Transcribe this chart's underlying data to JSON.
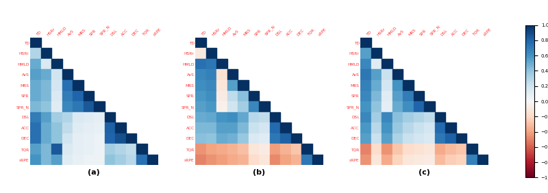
{
  "labels": [
    "TD",
    "HSRr",
    "HMLD",
    "AvS",
    "MRS",
    "SPR",
    "SPR_N",
    "DSL",
    "ACC",
    "DEC",
    "TQR",
    "sRPE"
  ],
  "subplot_labels": [
    "(a)",
    "(b)",
    "(c)"
  ],
  "label_color": "#FF3333",
  "cmap": "RdBu",
  "vmin": -1,
  "vmax": 1,
  "figsize": [
    8.0,
    2.82
  ],
  "dpi": 100,
  "corr_a": [
    [
      1.0,
      0.3,
      0.5,
      0.55,
      0.5,
      0.5,
      0.45,
      0.7,
      0.75,
      0.75,
      0.55,
      0.6
    ],
    [
      0.3,
      1.0,
      0.15,
      0.5,
      0.45,
      0.45,
      0.4,
      0.55,
      0.5,
      0.5,
      0.45,
      0.45
    ],
    [
      0.5,
      0.15,
      1.0,
      0.2,
      0.18,
      0.15,
      0.12,
      0.35,
      0.4,
      0.4,
      0.85,
      0.55
    ],
    [
      0.55,
      0.5,
      0.2,
      1.0,
      0.75,
      0.7,
      0.65,
      0.3,
      0.25,
      0.2,
      0.15,
      0.12
    ],
    [
      0.5,
      0.45,
      0.18,
      0.75,
      1.0,
      0.8,
      0.72,
      0.15,
      0.12,
      0.1,
      0.1,
      0.08
    ],
    [
      0.5,
      0.45,
      0.15,
      0.7,
      0.8,
      1.0,
      0.85,
      0.12,
      0.1,
      0.08,
      0.08,
      0.06
    ],
    [
      0.45,
      0.4,
      0.12,
      0.65,
      0.72,
      0.85,
      1.0,
      0.1,
      0.08,
      0.06,
      0.06,
      0.05
    ],
    [
      0.7,
      0.55,
      0.35,
      0.3,
      0.15,
      0.12,
      0.1,
      1.0,
      0.82,
      0.8,
      0.35,
      0.4
    ],
    [
      0.75,
      0.5,
      0.4,
      0.25,
      0.12,
      0.1,
      0.08,
      0.82,
      1.0,
      0.88,
      0.3,
      0.35
    ],
    [
      0.75,
      0.5,
      0.4,
      0.2,
      0.1,
      0.08,
      0.06,
      0.8,
      0.88,
      1.0,
      0.25,
      0.28
    ],
    [
      0.55,
      0.45,
      0.85,
      0.15,
      0.1,
      0.08,
      0.06,
      0.35,
      0.3,
      0.25,
      1.0,
      0.75
    ],
    [
      0.6,
      0.45,
      0.55,
      0.12,
      0.08,
      0.06,
      0.05,
      0.4,
      0.35,
      0.28,
      0.75,
      1.0
    ]
  ],
  "corr_b": [
    [
      1.0,
      -0.1,
      0.75,
      0.65,
      0.62,
      0.58,
      0.55,
      0.5,
      0.45,
      0.42,
      -0.45,
      -0.5
    ],
    [
      -0.1,
      1.0,
      0.72,
      0.68,
      0.65,
      0.62,
      0.58,
      0.52,
      0.45,
      0.4,
      -0.4,
      -0.45
    ],
    [
      0.75,
      0.72,
      1.0,
      -0.15,
      -0.12,
      -0.08,
      -0.05,
      0.6,
      0.55,
      0.5,
      -0.38,
      -0.42
    ],
    [
      0.65,
      0.68,
      -0.15,
      1.0,
      0.55,
      0.25,
      0.2,
      0.62,
      0.55,
      0.48,
      -0.35,
      -0.38
    ],
    [
      0.62,
      0.65,
      -0.12,
      0.55,
      1.0,
      0.42,
      0.35,
      0.52,
      0.45,
      0.38,
      -0.3,
      -0.35
    ],
    [
      0.58,
      0.62,
      -0.08,
      0.25,
      0.42,
      1.0,
      0.65,
      0.28,
      0.22,
      0.15,
      -0.12,
      -0.18
    ],
    [
      0.55,
      0.58,
      -0.05,
      0.2,
      0.35,
      0.65,
      1.0,
      0.25,
      0.18,
      0.12,
      -0.08,
      -0.12
    ],
    [
      0.5,
      0.52,
      0.6,
      0.62,
      0.52,
      0.28,
      0.25,
      1.0,
      0.78,
      0.72,
      -0.42,
      -0.48
    ],
    [
      0.45,
      0.45,
      0.55,
      0.55,
      0.45,
      0.22,
      0.18,
      0.78,
      1.0,
      0.82,
      -0.35,
      -0.4
    ],
    [
      0.42,
      0.4,
      0.5,
      0.48,
      0.38,
      0.15,
      0.12,
      0.72,
      0.82,
      1.0,
      -0.28,
      -0.35
    ],
    [
      -0.45,
      -0.4,
      -0.38,
      -0.35,
      -0.3,
      -0.12,
      -0.08,
      -0.42,
      -0.35,
      -0.28,
      1.0,
      0.72
    ],
    [
      -0.5,
      -0.45,
      -0.42,
      -0.38,
      -0.35,
      -0.18,
      -0.12,
      -0.48,
      -0.4,
      -0.35,
      0.72,
      1.0
    ]
  ],
  "corr_c": [
    [
      1.0,
      0.55,
      0.65,
      0.72,
      0.68,
      0.65,
      0.6,
      0.65,
      0.58,
      0.55,
      -0.5,
      -0.45
    ],
    [
      0.55,
      1.0,
      0.12,
      0.55,
      0.5,
      0.45,
      0.4,
      0.35,
      0.28,
      0.22,
      -0.18,
      -0.12
    ],
    [
      0.65,
      0.12,
      1.0,
      0.22,
      0.18,
      0.12,
      0.1,
      0.65,
      0.6,
      0.55,
      -0.45,
      -0.38
    ],
    [
      0.72,
      0.55,
      0.22,
      1.0,
      0.6,
      0.55,
      0.5,
      0.42,
      0.38,
      0.32,
      -0.28,
      -0.22
    ],
    [
      0.68,
      0.5,
      0.18,
      0.6,
      1.0,
      0.7,
      0.62,
      0.35,
      0.28,
      0.22,
      -0.18,
      -0.12
    ],
    [
      0.65,
      0.45,
      0.12,
      0.55,
      0.7,
      1.0,
      0.8,
      0.3,
      0.22,
      0.18,
      -0.15,
      -0.1
    ],
    [
      0.6,
      0.4,
      0.1,
      0.5,
      0.62,
      0.8,
      1.0,
      0.25,
      0.18,
      0.15,
      -0.12,
      -0.08
    ],
    [
      0.65,
      0.35,
      0.65,
      0.42,
      0.35,
      0.3,
      0.25,
      1.0,
      0.78,
      0.72,
      -0.38,
      -0.32
    ],
    [
      0.58,
      0.28,
      0.6,
      0.38,
      0.28,
      0.22,
      0.18,
      0.78,
      1.0,
      0.82,
      -0.32,
      -0.25
    ],
    [
      0.55,
      0.22,
      0.55,
      0.32,
      0.22,
      0.18,
      0.15,
      0.72,
      0.82,
      1.0,
      -0.28,
      -0.22
    ],
    [
      -0.5,
      -0.18,
      -0.45,
      -0.28,
      -0.18,
      -0.15,
      -0.12,
      -0.38,
      -0.32,
      -0.28,
      1.0,
      0.68
    ],
    [
      -0.45,
      -0.12,
      -0.38,
      -0.22,
      -0.12,
      -0.1,
      -0.08,
      -0.32,
      -0.25,
      -0.22,
      0.68,
      1.0
    ]
  ]
}
